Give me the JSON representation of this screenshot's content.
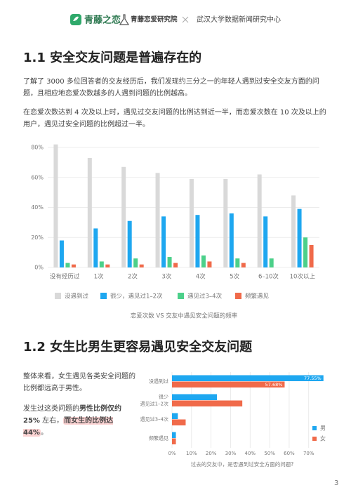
{
  "header": {
    "brand": "青藤之恋",
    "institute": "青藤恋爱研究院",
    "partner": "武汉大学数据新闻研究中心"
  },
  "section1": {
    "title": "1.1  安全交友问题是普遍存在的",
    "paragraphs": [
      "了解了 3000 多位回答者的交友经历后，我们发现约三分之一的年轻人遇到过安全交友方面的问题，且相应地恋爱次数越多的人遇到问题的比例越高。",
      "在恋爱次数达到 4 次及以上时，遇见过交友问题的比例达到近一半，而恋爱次数在 10 次及以上的用户，遇见过安全问题的比例超过一半。"
    ]
  },
  "section2": {
    "title": "1.2  女生比男生更容易遇见安全交友问题",
    "paragraph1": "整体来看，女生遇见各类安全问题的比例都远高于男性。",
    "paragraph2": [
      {
        "text": "发生过这类问题的"
      },
      {
        "text": "男性比例仅约 25%",
        "bold": true
      },
      {
        "text": " 左右，"
      },
      {
        "text": "而女生的比例达 44%",
        "bold": true,
        "highlight": true
      },
      {
        "text": "。"
      }
    ]
  },
  "chart_data": [
    {
      "type": "bar",
      "caption": "恋爱次数 VS 交友中遇见安全问题的频率",
      "categories": [
        "没有经历过",
        "1次",
        "2次",
        "3次",
        "4次",
        "5次",
        "6–10次",
        "10次以上"
      ],
      "series": [
        {
          "name": "没遇到过",
          "color": "#d9d9d9",
          "values": [
            82,
            73,
            67,
            63,
            59,
            59,
            62,
            48
          ]
        },
        {
          "name": "很少，遇见过1–2次",
          "color": "#1ea7f0",
          "values": [
            18,
            26,
            31,
            34,
            35,
            36,
            34,
            39
          ]
        },
        {
          "name": "遇见过3–4次",
          "color": "#4cd08a",
          "values": [
            3,
            4,
            6,
            7,
            8,
            6,
            6,
            20
          ]
        },
        {
          "name": "频繁遇见",
          "color": "#f06a4a",
          "values": [
            2,
            2,
            2,
            3,
            4,
            3,
            null,
            15
          ]
        }
      ],
      "ylim": [
        0,
        80
      ],
      "yticks": [
        {
          "value": 0,
          "label": "0%"
        },
        {
          "value": 20,
          "label": "20%"
        },
        {
          "value": 40,
          "label": "40%"
        },
        {
          "value": 60,
          "label": "60%"
        },
        {
          "value": 80,
          "label": "80%"
        }
      ],
      "grid": true
    },
    {
      "type": "hbar",
      "xlabel": "过去的交友中，是否遇到过安全方面的问题?",
      "categories": [
        [
          "没遇到过"
        ],
        [
          "很少",
          "遇见过1–2次"
        ],
        [
          "遇见过3–4次"
        ],
        [
          "频繁遇见"
        ]
      ],
      "series": [
        {
          "name": "男",
          "color": "#1ea7f0",
          "values": [
            77.55,
            23,
            3,
            2
          ],
          "value_labels": [
            "77.55%",
            null,
            null,
            null
          ]
        },
        {
          "name": "女",
          "color": "#f06a4a",
          "values": [
            57.68,
            36,
            7,
            2
          ],
          "value_labels": [
            "57.68%",
            null,
            null,
            null
          ]
        }
      ],
      "xlim": [
        0,
        78
      ],
      "xticks": [
        {
          "value": 0,
          "label": "0%"
        },
        {
          "value": 10,
          "label": "10%"
        },
        {
          "value": 20,
          "label": "20%"
        },
        {
          "value": 30,
          "label": "30%"
        },
        {
          "value": 40,
          "label": "40%"
        },
        {
          "value": 50,
          "label": "50%"
        },
        {
          "value": 60,
          "label": "60%"
        },
        {
          "value": 70,
          "label": "70%"
        }
      ],
      "grid": true
    }
  ],
  "page_number": "3"
}
